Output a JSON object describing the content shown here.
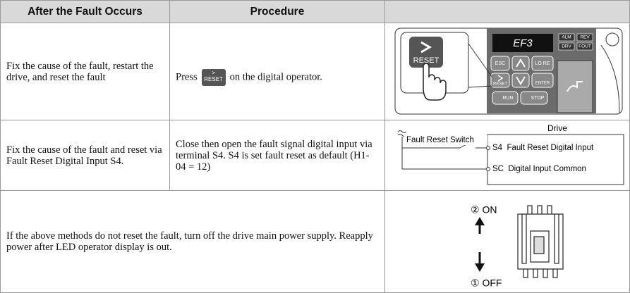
{
  "header": {
    "condition": "After the Fault Occurs",
    "procedure": "Procedure"
  },
  "rows": [
    {
      "condition": "Fix the cause of the fault, restart the drive, and reset the fault",
      "procedure": {
        "before": "Press",
        "key": "RESET",
        "after": "on the digital operator."
      },
      "figure": {
        "callout_key": "RESET",
        "display": "EF3",
        "leds": [
          "ALM",
          "REV",
          "DRV",
          "FOUT"
        ],
        "keys": [
          "ESC",
          "LO RE",
          "RESET",
          "ENTER",
          "RUN",
          "STOP"
        ]
      }
    },
    {
      "condition": "Fix the cause of the fault and reset via Fault Reset Digital Input S4.",
      "procedure": "Close then open the fault signal digital input via terminal S4. S4 is set fault reset as default (H1-04 = 12)",
      "figure": {
        "title": "Drive",
        "switch": "Fault Reset Switch",
        "terminals": [
          "S4  Fault Reset Digital Input",
          "SC  Digital Input Common"
        ]
      }
    },
    {
      "condition": "If the above methods do not reset the fault, turn off the drive main power supply. Reapply power after LED operator display is out.",
      "figure": {
        "on": "② ON",
        "off": "① OFF"
      }
    }
  ]
}
